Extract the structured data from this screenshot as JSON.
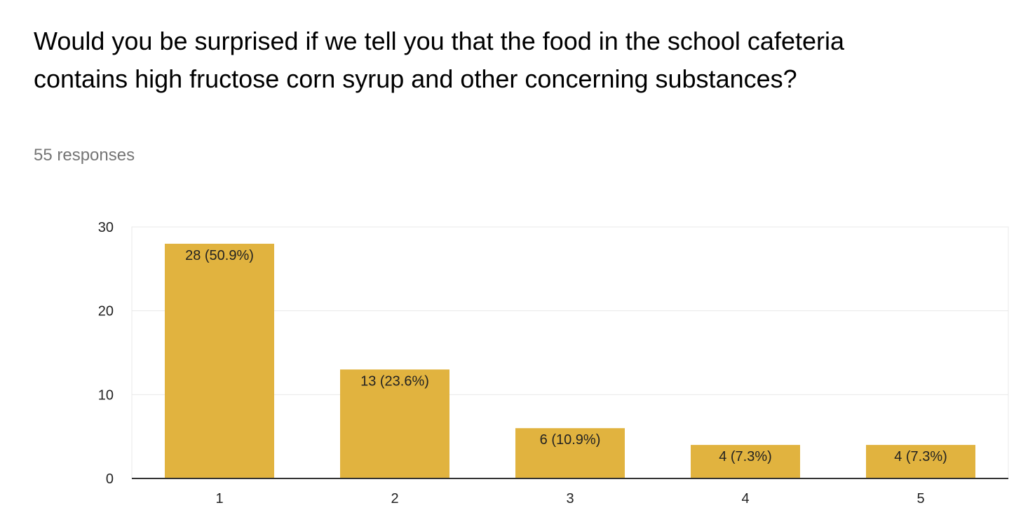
{
  "question": "Would you be surprised if we tell you that the food in the school cafeteria contains high fructose corn syrup and other concerning substances?",
  "responses_text": "55 responses",
  "colors": {
    "bar": "#e1b33f",
    "grid": "#e8e8e8",
    "axis": "#333333"
  },
  "chart_data": {
    "type": "bar",
    "title": "",
    "xlabel": "",
    "ylabel": "",
    "categories": [
      "1",
      "2",
      "3",
      "4",
      "5"
    ],
    "values": [
      28,
      13,
      6,
      4,
      4
    ],
    "data_labels": [
      "28 (50.9%)",
      "13 (23.6%)",
      "6 (10.9%)",
      "4 (7.3%)",
      "4 (7.3%)"
    ],
    "ylim": [
      0,
      30
    ],
    "yticks": [
      0,
      10,
      20,
      30
    ],
    "grid": true
  }
}
